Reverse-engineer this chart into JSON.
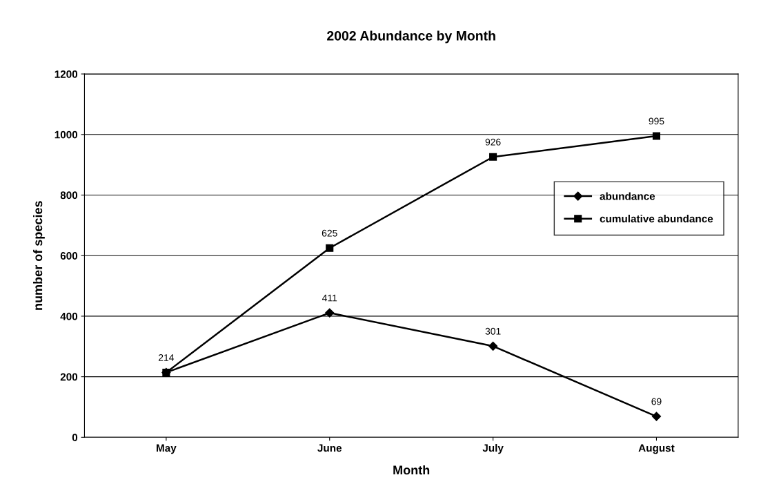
{
  "chart_data": {
    "type": "line",
    "title": "2002 Abundance by Month",
    "xlabel": "Month",
    "ylabel": "number of species",
    "categories": [
      "May",
      "June",
      "July",
      "August"
    ],
    "series": [
      {
        "name": "abundance",
        "color": "#000000",
        "values": [
          214,
          411,
          301,
          69
        ],
        "marker": "diamond",
        "value_labels": [
          "214",
          "411",
          "301",
          "69"
        ]
      },
      {
        "name": "cumulative abundance",
        "color": "#000000",
        "values": [
          214,
          625,
          926,
          995
        ],
        "marker": "square",
        "value_labels": [
          null,
          "625",
          "926",
          "995"
        ]
      }
    ],
    "ylim": [
      0,
      1200
    ],
    "yticks": [
      0,
      200,
      400,
      600,
      800,
      1000,
      1200
    ],
    "grid": "y",
    "legend": "right",
    "line_style": "solid"
  }
}
